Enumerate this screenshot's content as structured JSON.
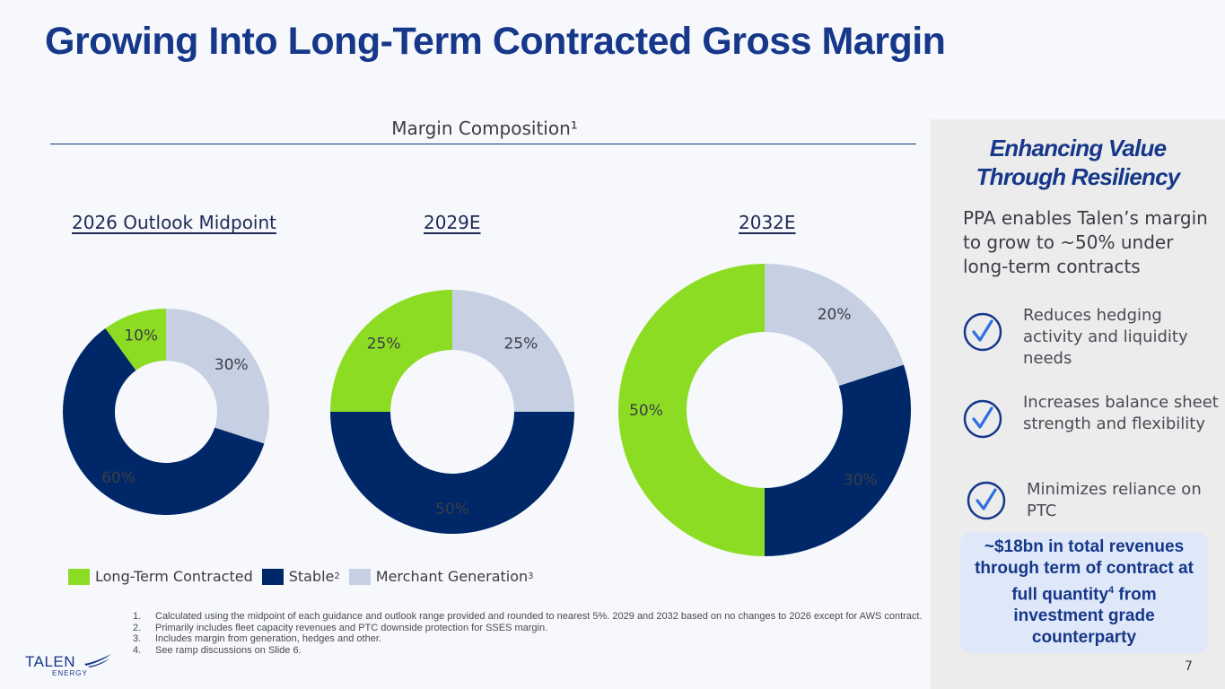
{
  "title": "Growing Into Long-Term Contracted Gross Margin",
  "composition_title": "Margin Composition¹",
  "chart_data": [
    {
      "type": "pie",
      "title": "2026 Outlook Midpoint",
      "categories": [
        "Long-Term Contracted",
        "Stable",
        "Merchant Generation"
      ],
      "values": [
        10,
        60,
        30
      ],
      "labels": [
        "10%",
        "60%",
        "30%"
      ]
    },
    {
      "type": "pie",
      "title": "2029E",
      "categories": [
        "Long-Term Contracted",
        "Stable",
        "Merchant Generation"
      ],
      "values": [
        25,
        50,
        25
      ],
      "labels": [
        "25%",
        "50%",
        "25%"
      ]
    },
    {
      "type": "pie",
      "title": "2032E",
      "categories": [
        "Long-Term Contracted",
        "Stable",
        "Merchant Generation"
      ],
      "values": [
        50,
        30,
        20
      ],
      "labels": [
        "50%",
        "30%",
        "20%"
      ]
    }
  ],
  "colors": {
    "long_term_contracted": "#8cdc23",
    "stable": "#002868",
    "merchant_generation": "#c6d0e2"
  },
  "legend": {
    "items": [
      {
        "label": "Long-Term Contracted",
        "sup": ""
      },
      {
        "label": "Stable",
        "sup": "2"
      },
      {
        "label": "Merchant Generation",
        "sup": "3"
      }
    ]
  },
  "footnotes": [
    {
      "num": "1.",
      "text": "Calculated using the midpoint of each guidance and outlook range provided and rounded to nearest 5%. 2029 and 2032 based on no changes to 2026 except for AWS contract."
    },
    {
      "num": "2.",
      "text": "Primarily includes fleet capacity revenues and PTC downside protection for SSES margin."
    },
    {
      "num": "3.",
      "text": "Includes margin from generation, hedges and other."
    },
    {
      "num": "4.",
      "text": "See ramp discussions on Slide 6."
    }
  ],
  "logo": {
    "wordmark": "TALEN",
    "sub": "ENERGY"
  },
  "panel": {
    "heading_line1": "Enhancing Value",
    "heading_line2": "Through Resiliency",
    "subheading": "PPA enables Talen’s margin to grow to ~50% under long-term contracts",
    "bullets": [
      "Reduces hedging activity and liquidity needs",
      "Increases balance sheet strength and flexibility",
      "Minimizes reliance on PTC"
    ],
    "callout_before": "~$18bn in total revenues through term of contract at full quantity",
    "callout_sup": "4",
    "callout_after": " from investment grade counterparty"
  },
  "page_number": "7"
}
